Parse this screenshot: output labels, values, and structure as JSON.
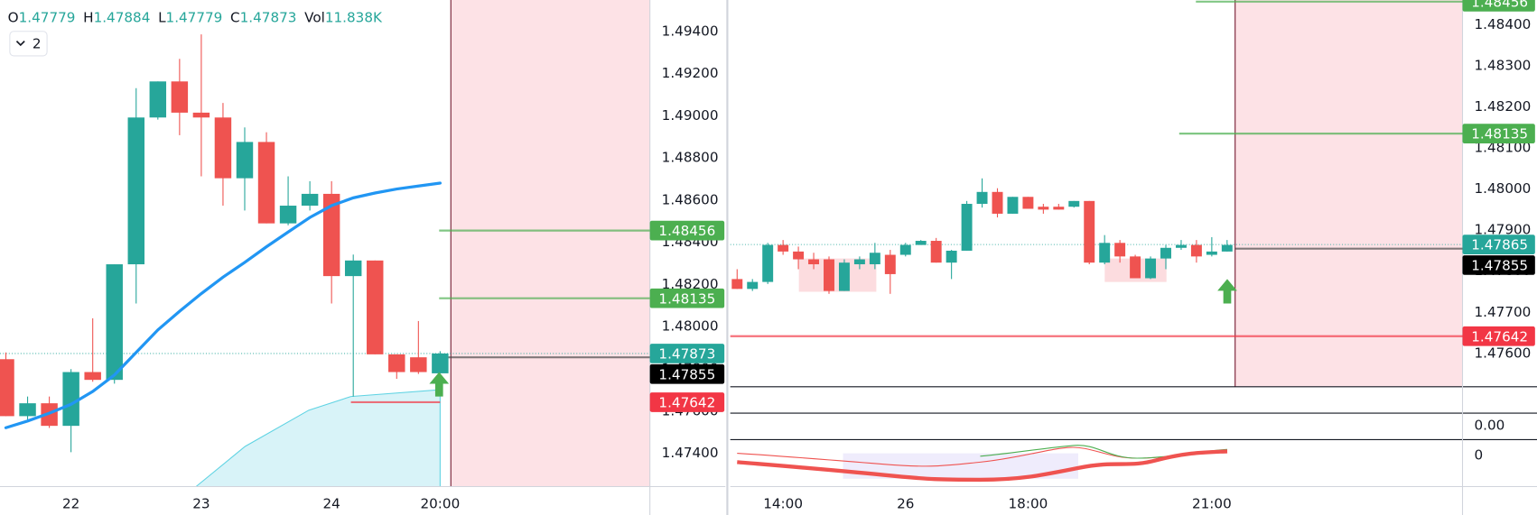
{
  "indicator_badge": 2,
  "chart_data": [
    {
      "type": "candlestick",
      "ohlc_legend": [
        {
          "label": "O",
          "value": 1.47779
        },
        {
          "label": "H",
          "value": 1.47884
        },
        {
          "label": "L",
          "value": 1.47779
        },
        {
          "label": "C",
          "value": 1.47873
        },
        {
          "label": "Vol",
          "value": "11.838K"
        }
      ],
      "categories": [
        null,
        null,
        null,
        "22",
        null,
        null,
        null,
        null,
        null,
        "23",
        null,
        null,
        null,
        null,
        null,
        "24",
        null,
        null,
        null,
        null,
        "20:00"
      ],
      "open": [
        1.47846,
        1.47576,
        1.47637,
        1.4753,
        1.47785,
        1.47748,
        1.48296,
        1.48992,
        1.49163,
        1.49015,
        1.48992,
        1.48704,
        1.48876,
        1.4849,
        1.48574,
        1.4863,
        1.4824,
        1.48314,
        1.47869,
        1.47855,
        1.47779
      ],
      "high": [
        1.47878,
        1.47669,
        1.47669,
        1.47799,
        1.4804,
        1.48296,
        1.49131,
        1.49163,
        1.4927,
        1.49386,
        1.49061,
        1.48945,
        1.48922,
        1.48713,
        1.4869,
        1.4869,
        1.48342,
        1.48314,
        1.47869,
        1.48027,
        1.47884
      ],
      "low": [
        1.47576,
        1.47553,
        1.4752,
        1.47405,
        1.47739,
        1.4773,
        1.4811,
        1.48982,
        1.48908,
        1.48713,
        1.48574,
        1.48551,
        1.4849,
        1.48481,
        1.48551,
        1.4811,
        1.47669,
        1.47869,
        1.47753,
        1.47776,
        1.47779
      ],
      "close": [
        1.47576,
        1.47637,
        1.4753,
        1.47785,
        1.47748,
        1.48296,
        1.48992,
        1.49163,
        1.49015,
        1.48992,
        1.48704,
        1.48876,
        1.4849,
        1.48574,
        1.4863,
        1.4824,
        1.48314,
        1.47869,
        1.47785,
        1.47785,
        1.47873
      ],
      "up_color": "#26a69a",
      "down_color": "#ef5350",
      "ma": {
        "color": "#2196f3",
        "values": [
          1.47521,
          1.47553,
          1.4759,
          1.47632,
          1.47693,
          1.47771,
          1.47878,
          1.47985,
          1.48073,
          1.48157,
          1.48235,
          1.48305,
          1.48379,
          1.48449,
          1.48518,
          1.48574,
          1.48611,
          1.48634,
          1.48653,
          1.48667,
          1.48681
        ]
      },
      "price_lines": [
        {
          "value": 1.48456,
          "color": "#4caf50"
        },
        {
          "value": 1.48135,
          "color": "#4caf50"
        },
        {
          "value": 1.47873,
          "color": "#26a69a"
        },
        {
          "value": 1.47855,
          "color": "#000000"
        },
        {
          "value": 1.47642,
          "color": "#f23645"
        }
      ],
      "ylim": [
        1.47242,
        1.49549
      ],
      "yticks": [
        {
          "value": 1.474,
          "label": "1.47400"
        },
        {
          "value": 1.476,
          "label": "1.47600"
        },
        {
          "value": 1.478,
          "label": "1.47800"
        },
        {
          "value": 1.48,
          "label": "1.48000"
        },
        {
          "value": 1.482,
          "label": "1.48200"
        },
        {
          "value": 1.484,
          "label": "1.48400"
        },
        {
          "value": 1.486,
          "label": "1.48600"
        },
        {
          "value": 1.488,
          "label": "1.48800"
        },
        {
          "value": 1.49,
          "label": "1.49000"
        },
        {
          "value": 1.492,
          "label": "1.49200"
        },
        {
          "value": 1.494,
          "label": "1.49400"
        }
      ],
      "grid": false
    },
    {
      "type": "candlestick",
      "categories": [
        null,
        null,
        null,
        "14:00",
        null,
        null,
        null,
        null,
        null,
        null,
        null,
        "26",
        null,
        null,
        null,
        null,
        null,
        null,
        null,
        "18:00",
        null,
        null,
        null,
        null,
        null,
        null,
        null,
        null,
        null,
        null,
        null,
        "21:00",
        null
      ],
      "open": [
        1.47781,
        1.47757,
        1.47774,
        1.47864,
        1.47848,
        1.47829,
        1.47829,
        1.47752,
        1.47817,
        1.47817,
        1.4784,
        1.4784,
        1.47864,
        1.47874,
        1.47821,
        1.4785,
        1.47964,
        1.47993,
        1.4794,
        1.47981,
        1.47957,
        1.47957,
        1.47957,
        1.47971,
        1.47821,
        1.47869,
        1.47836,
        1.47783,
        1.47831,
        1.47857,
        1.47864,
        1.4784,
        1.47848
      ],
      "high": [
        1.47805,
        1.47781,
        1.47869,
        1.47876,
        1.4786,
        1.47845,
        1.47836,
        1.47829,
        1.47836,
        1.47869,
        1.47852,
        1.47869,
        1.47876,
        1.47881,
        1.47852,
        1.47971,
        1.48026,
        1.48002,
        1.47981,
        1.47981,
        1.47964,
        1.47964,
        1.47971,
        1.47971,
        1.47888,
        1.47876,
        1.4784,
        1.47836,
        1.47864,
        1.47876,
        1.47876,
        1.47883,
        1.47876
      ],
      "low": [
        1.47757,
        1.47752,
        1.47769,
        1.4784,
        1.47805,
        1.47805,
        1.47745,
        1.47752,
        1.47805,
        1.47805,
        1.47745,
        1.47836,
        1.47864,
        1.47821,
        1.47781,
        1.4785,
        1.47955,
        1.47931,
        1.4794,
        1.47952,
        1.4794,
        1.4795,
        1.47955,
        1.47817,
        1.47817,
        1.47821,
        1.47783,
        1.47781,
        1.47805,
        1.47852,
        1.47821,
        1.47836,
        1.47848
      ],
      "close": [
        1.47757,
        1.47774,
        1.47864,
        1.47848,
        1.47829,
        1.47817,
        1.47752,
        1.47821,
        1.47829,
        1.47845,
        1.47793,
        1.47864,
        1.47874,
        1.47821,
        1.4785,
        1.47964,
        1.47993,
        1.4794,
        1.47981,
        1.47952,
        1.4795,
        1.4795,
        1.47971,
        1.47821,
        1.47869,
        1.47836,
        1.47783,
        1.47831,
        1.47857,
        1.47864,
        1.47836,
        1.47848,
        1.47864
      ],
      "up_color": "#26a69a",
      "down_color": "#ef5350",
      "price_lines": [
        {
          "value": 1.48456,
          "color": "#4caf50"
        },
        {
          "value": 1.48135,
          "color": "#4caf50"
        },
        {
          "value": 1.47865,
          "color": "#26a69a"
        },
        {
          "value": 1.47855,
          "color": "#000000"
        },
        {
          "value": 1.47642,
          "color": "#f23645"
        }
      ],
      "ylim": [
        1.47519,
        1.4846
      ],
      "yticks": [
        {
          "value": 1.476,
          "label": "1.47600"
        },
        {
          "value": 1.477,
          "label": "1.47700"
        },
        {
          "value": 1.478,
          "label": "1.47800"
        },
        {
          "value": 1.479,
          "label": "1.47900"
        },
        {
          "value": 1.48,
          "label": "1.48000"
        },
        {
          "value": 1.481,
          "label": "1.48100"
        },
        {
          "value": 1.482,
          "label": "1.48200"
        },
        {
          "value": 1.483,
          "label": "1.48300"
        },
        {
          "value": 1.484,
          "label": "1.48400"
        }
      ],
      "indicator_labels": [
        {
          "value": 0,
          "label": "0.00"
        },
        0
      ],
      "grid": false
    }
  ]
}
